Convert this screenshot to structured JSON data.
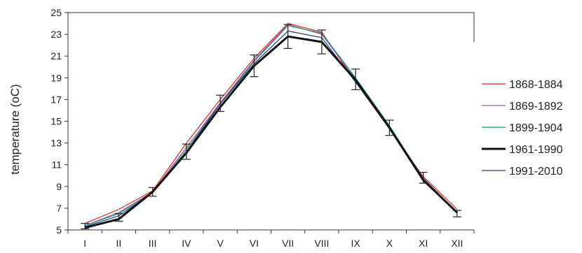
{
  "chart_data": {
    "type": "line",
    "ylabel": "temperature (oC)",
    "xlabel": "",
    "categories": [
      "I",
      "II",
      "III",
      "IV",
      "V",
      "VI",
      "VII",
      "VIII",
      "IX",
      "X",
      "XI",
      "XII"
    ],
    "ylim": [
      5,
      25
    ],
    "yticks": [
      5,
      7,
      9,
      11,
      13,
      15,
      17,
      19,
      21,
      23,
      25
    ],
    "grid": false,
    "legend_position": "right",
    "series": [
      {
        "name": "1868-1884",
        "color": "#e2231a",
        "width": 1.2,
        "values": [
          5.6,
          6.9,
          8.6,
          13.0,
          17.0,
          20.8,
          24.0,
          23.2,
          18.6,
          14.3,
          9.9,
          6.9
        ]
      },
      {
        "name": "1869-1892",
        "color": "#b04aa8",
        "width": 1.2,
        "values": [
          5.4,
          6.6,
          8.5,
          12.6,
          16.7,
          20.6,
          23.9,
          23.0,
          18.9,
          14.5,
          9.8,
          6.6
        ]
      },
      {
        "name": "1899-1904",
        "color": "#00a07a",
        "width": 1.2,
        "values": [
          5.4,
          6.5,
          8.4,
          12.4,
          16.6,
          20.5,
          23.8,
          23.1,
          19.0,
          14.6,
          9.7,
          6.5
        ]
      },
      {
        "name": "1961-1990",
        "color": "#111111",
        "width": 3,
        "values": [
          5.2,
          6.0,
          8.5,
          12.1,
          16.3,
          20.1,
          22.8,
          22.3,
          18.8,
          14.4,
          9.6,
          6.6
        ]
      },
      {
        "name": "1991-2010",
        "color": "#1f3a73",
        "width": 1.2,
        "values": [
          5.3,
          6.3,
          8.4,
          12.2,
          16.6,
          20.3,
          23.3,
          22.7,
          18.6,
          14.4,
          9.5,
          6.6
        ]
      }
    ],
    "error_bars": {
      "low": [
        5.1,
        5.8,
        8.1,
        11.5,
        15.9,
        19.1,
        21.7,
        21.2,
        17.9,
        13.7,
        9.3,
        6.2
      ],
      "high": [
        5.6,
        6.5,
        8.9,
        12.9,
        17.4,
        21.1,
        23.9,
        23.4,
        19.8,
        15.1,
        10.3,
        6.8
      ]
    }
  }
}
